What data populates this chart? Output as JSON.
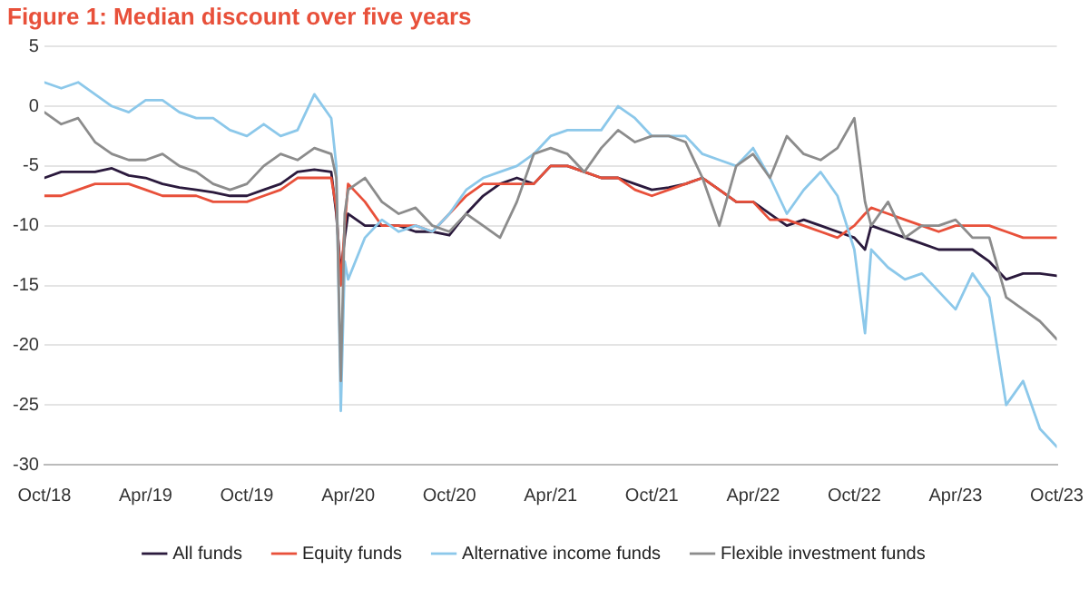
{
  "chart_data": {
    "type": "line",
    "title": "Figure 1: Median discount over five years",
    "x": [
      "2018-10",
      "2018-11",
      "2018-12",
      "2019-01",
      "2019-02",
      "2019-03",
      "2019-04",
      "2019-05",
      "2019-06",
      "2019-07",
      "2019-08",
      "2019-09",
      "2019-10",
      "2019-11",
      "2019-12",
      "2020-01",
      "2020-02",
      "2020-03-01",
      "2020-03-10",
      "2020-03-18",
      "2020-03-25",
      "2020-04",
      "2020-05",
      "2020-06",
      "2020-07",
      "2020-08",
      "2020-09",
      "2020-10",
      "2020-11",
      "2020-12",
      "2021-01",
      "2021-02",
      "2021-03",
      "2021-04",
      "2021-05",
      "2021-06",
      "2021-07",
      "2021-08",
      "2021-09",
      "2021-10",
      "2021-11",
      "2021-12",
      "2022-01",
      "2022-02",
      "2022-03",
      "2022-04",
      "2022-05",
      "2022-06",
      "2022-07",
      "2022-08",
      "2022-09",
      "2022-10-01",
      "2022-10-20",
      "2022-11",
      "2022-12",
      "2023-01",
      "2023-02",
      "2023-03",
      "2023-04",
      "2023-05",
      "2023-06",
      "2023-07",
      "2023-08",
      "2023-09",
      "2023-10"
    ],
    "series": [
      {
        "name": "All funds",
        "color": "#2b1a3d",
        "values": [
          -6,
          -5.5,
          -5.5,
          -5.5,
          -5.2,
          -5.8,
          -6,
          -6.5,
          -6.8,
          -7,
          -7.2,
          -7.5,
          -7.5,
          -7,
          -6.5,
          -5.5,
          -5.3,
          -5.5,
          -9,
          -14,
          -11,
          -9,
          -10,
          -10,
          -10,
          -10.5,
          -10.5,
          -10.8,
          -9,
          -7.5,
          -6.5,
          -6,
          -6.5,
          -5,
          -5,
          -5.5,
          -6,
          -6,
          -6.5,
          -7,
          -6.8,
          -6.5,
          -6,
          -7,
          -8,
          -8,
          -9,
          -10,
          -9.5,
          -10,
          -10.5,
          -11,
          -12,
          -10,
          -10.5,
          -11,
          -11.5,
          -12,
          -12,
          -12,
          -13,
          -14.5,
          -14,
          -14,
          -14.2
        ]
      },
      {
        "name": "Equity funds",
        "color": "#e8503a",
        "values": [
          -7.5,
          -7.5,
          -7,
          -6.5,
          -6.5,
          -6.5,
          -7,
          -7.5,
          -7.5,
          -7.5,
          -8,
          -8,
          -8,
          -7.5,
          -7,
          -6,
          -6,
          -6,
          -8.5,
          -15,
          -10,
          -6.5,
          -8,
          -10,
          -10,
          -10,
          -10.5,
          -9,
          -7.5,
          -6.5,
          -6.5,
          -6.5,
          -6.5,
          -5,
          -5,
          -5.5,
          -6,
          -6,
          -7,
          -7.5,
          -7,
          -6.5,
          -6,
          -7,
          -8,
          -8,
          -9.5,
          -9.5,
          -10,
          -10.5,
          -11,
          -10,
          -9,
          -8.5,
          -9,
          -9.5,
          -10,
          -10.5,
          -10,
          -10,
          -10,
          -10.5,
          -11,
          -11,
          -11
        ]
      },
      {
        "name": "Alternative income funds",
        "color": "#8cc8ea",
        "values": [
          2,
          1.5,
          2,
          1,
          0,
          -0.5,
          0.5,
          0.5,
          -0.5,
          -1,
          -1,
          -2,
          -2.5,
          -1.5,
          -2.5,
          -2,
          1,
          -1,
          -5,
          -25.5,
          -13,
          -14.5,
          -11,
          -9.5,
          -10.5,
          -10,
          -10.5,
          -9,
          -7,
          -6,
          -5.5,
          -5,
          -4,
          -2.5,
          -2,
          -2,
          -2,
          0,
          -1,
          -2.5,
          -2.5,
          -2.5,
          -4,
          -4.5,
          -5,
          -3.5,
          -6,
          -9,
          -7,
          -5.5,
          -7.5,
          -12,
          -19,
          -12,
          -13.5,
          -14.5,
          -14,
          -15.5,
          -17,
          -14,
          -16,
          -25,
          -23,
          -27,
          -28.5
        ]
      },
      {
        "name": "Flexible investment funds",
        "color": "#8c8c8c",
        "values": [
          -0.5,
          -1.5,
          -1,
          -3,
          -4,
          -4.5,
          -4.5,
          -4,
          -5,
          -5.5,
          -6.5,
          -7,
          -6.5,
          -5,
          -4,
          -4.5,
          -3.5,
          -4,
          -6,
          -23,
          -9,
          -7,
          -6,
          -8,
          -9,
          -8.5,
          -10,
          -10.5,
          -9,
          -10,
          -11,
          -8,
          -4,
          -3.5,
          -4,
          -5.5,
          -3.5,
          -2,
          -3,
          -2.5,
          -2.5,
          -3,
          -6,
          -10,
          -5,
          -4,
          -6,
          -2.5,
          -4,
          -4.5,
          -3.5,
          -1,
          -8,
          -10,
          -8,
          -11,
          -10,
          -10,
          -9.5,
          -11,
          -11,
          -16,
          -17,
          -18,
          -19.5
        ]
      }
    ],
    "xlim": [
      "2018-10",
      "2023-10"
    ],
    "xticks": [
      {
        "value": "2018-10",
        "label": "Oct/18"
      },
      {
        "value": "2019-04",
        "label": "Apr/19"
      },
      {
        "value": "2019-10",
        "label": "Oct/19"
      },
      {
        "value": "2020-04",
        "label": "Apr/20"
      },
      {
        "value": "2020-10",
        "label": "Oct/20"
      },
      {
        "value": "2021-04",
        "label": "Apr/21"
      },
      {
        "value": "2021-10",
        "label": "Oct/21"
      },
      {
        "value": "2022-04",
        "label": "Apr/22"
      },
      {
        "value": "2022-10",
        "label": "Oct/22"
      },
      {
        "value": "2023-04",
        "label": "Apr/23"
      },
      {
        "value": "2023-10",
        "label": "Oct/23"
      }
    ],
    "ylim": [
      -30,
      5
    ],
    "yticks": [
      -30,
      -25,
      -20,
      -15,
      -10,
      -5,
      0,
      5
    ],
    "grid": "y",
    "legend": "bottom",
    "marker": "none",
    "line_style": "solid"
  }
}
